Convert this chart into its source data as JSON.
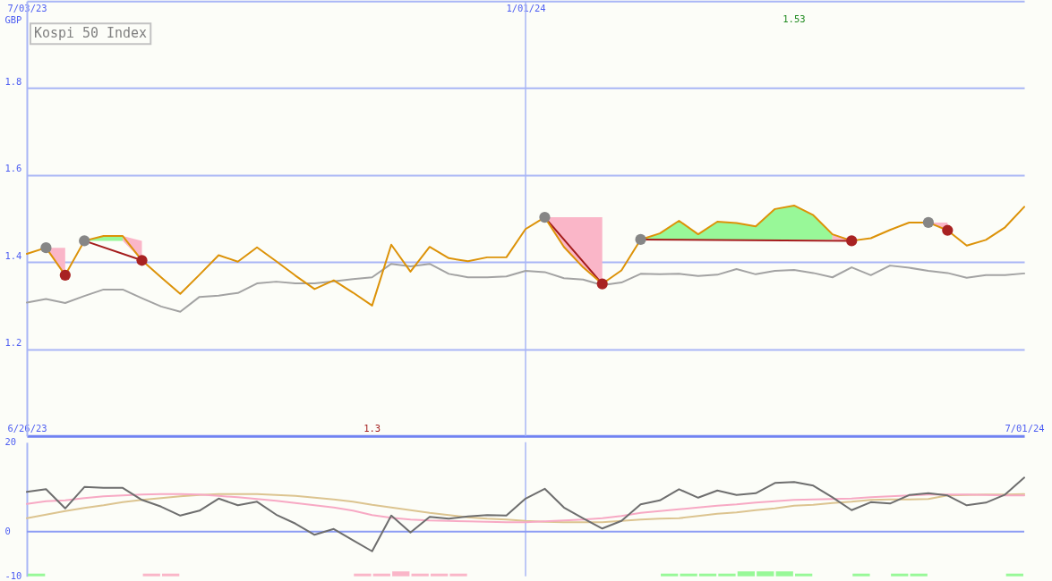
{
  "chart_data": [
    {
      "type": "line",
      "title": "Kospi 50 Index",
      "ylabel": "GBP",
      "x": [
        "2023-07-03",
        "2023-07-10",
        "2023-07-17",
        "2023-07-24",
        "2023-07-31",
        "2023-08-07",
        "2023-08-14",
        "2023-08-21",
        "2023-08-28",
        "2023-09-04",
        "2023-09-11",
        "2023-09-18",
        "2023-09-25",
        "2023-10-02",
        "2023-10-09",
        "2023-10-16",
        "2023-10-23",
        "2023-10-30",
        "2023-11-06",
        "2023-11-13",
        "2023-11-20",
        "2023-11-27",
        "2023-12-04",
        "2023-12-11",
        "2023-12-18",
        "2023-12-25",
        "2024-01-01",
        "2024-01-08",
        "2024-01-15",
        "2024-01-22",
        "2024-01-29",
        "2024-02-05",
        "2024-02-12",
        "2024-02-19",
        "2024-02-26",
        "2024-03-04",
        "2024-03-11",
        "2024-03-18",
        "2024-03-25",
        "2024-04-01",
        "2024-04-08",
        "2024-04-15",
        "2024-04-22",
        "2024-04-29",
        "2024-05-06",
        "2024-05-13",
        "2024-05-20",
        "2024-05-27",
        "2024-06-03",
        "2024-06-10",
        "2024-06-17",
        "2024-06-24",
        "2024-07-01"
      ],
      "xlim": [
        "2023-07-03",
        "2024-07-01"
      ],
      "xticks": [
        {
          "value": "2023-07-03",
          "label": "6/26/23"
        },
        {
          "value": "2024-07-01",
          "label": "7/01/24"
        }
      ],
      "x2lim": [
        "2023-07-03",
        "2024-07-01"
      ],
      "x2ticks": [
        {
          "value": "2023-07-03",
          "label": "7/03/23"
        },
        {
          "value": "2024-01-01",
          "label": "1/01/24"
        }
      ],
      "ylim": [
        1.0,
        2.0
      ],
      "yticks": [
        1.2,
        1.4,
        1.6,
        1.8
      ],
      "grid": "y",
      "ref_lines": [
        {
          "axis": "x",
          "value": "2024-01-01",
          "color": "#a9b6f6"
        }
      ],
      "series": [
        {
          "type": "line",
          "color": "#fab6c8",
          "x": [
            "2023-07-10",
            "2023-07-17"
          ],
          "values": [
            null,
            null
          ],
          "lower": [
            1.433,
            1.37
          ],
          "upper": [
            1.433,
            1.433
          ]
        },
        {
          "type": "line",
          "color": "#98f898",
          "x": [
            "2023-07-24",
            "2023-07-31",
            "2023-08-07"
          ],
          "values": [
            null,
            null,
            null
          ],
          "lower": [
            1.449,
            1.449,
            1.449
          ],
          "upper": [
            1.449,
            1.46,
            1.46
          ]
        },
        {
          "type": "line",
          "color": "#fab6c8",
          "x": [
            "2023-08-07",
            "2023-08-14"
          ],
          "values": [
            null,
            null
          ],
          "lower": [
            1.449,
            1.404
          ],
          "upper": [
            1.46,
            1.449
          ]
        },
        {
          "type": "line",
          "color": "#fab6c8",
          "x": [
            "2024-01-08",
            "2024-01-15",
            "2024-01-22",
            "2024-01-29"
          ],
          "values": [
            null,
            null,
            null,
            null
          ],
          "lower": [
            1.503,
            1.435,
            1.388,
            1.35
          ],
          "upper": [
            1.503,
            1.503,
            1.503,
            1.503
          ]
        },
        {
          "type": "line",
          "color": "#98f898",
          "x": [
            "2024-02-12",
            "2024-02-19",
            "2024-02-26",
            "2024-03-04",
            "2024-03-11",
            "2024-03-18",
            "2024-03-25",
            "2024-04-01",
            "2024-04-08",
            "2024-04-15",
            "2024-04-22"
          ],
          "values": [
            null,
            null,
            null,
            null,
            null,
            null,
            null,
            null,
            null,
            null,
            null
          ],
          "lower": [
            1.452,
            1.452,
            1.452,
            1.452,
            1.452,
            1.452,
            1.452,
            1.452,
            1.452,
            1.452,
            1.452
          ],
          "upper": [
            1.452,
            1.466,
            1.495,
            1.464,
            1.493,
            1.49,
            1.482,
            1.522,
            1.53,
            1.508,
            1.464
          ]
        },
        {
          "type": "line",
          "color": "#fab6c8",
          "x": [
            "2024-04-22",
            "2024-04-29"
          ],
          "values": [
            null,
            null
          ],
          "lower": [
            1.452,
            1.449
          ],
          "upper": [
            1.464,
            1.452
          ]
        },
        {
          "type": "line",
          "color": "#fab6c8",
          "x": [
            "2024-05-27",
            "2024-06-03"
          ],
          "values": [
            null,
            null
          ],
          "lower": [
            1.491,
            1.473
          ],
          "upper": [
            1.491,
            1.491
          ]
        },
        {
          "color": "#a3a3a3",
          "values": [
            1.307,
            1.315,
            1.306,
            1.322,
            1.337,
            1.337,
            1.317,
            1.298,
            1.286,
            1.32,
            1.323,
            1.329,
            1.351,
            1.355,
            1.351,
            1.351,
            1.356,
            1.361,
            1.365,
            1.396,
            1.39,
            1.396,
            1.373,
            1.365,
            1.365,
            1.367,
            1.38,
            1.377,
            1.363,
            1.36,
            1.347,
            1.353,
            1.373,
            1.372,
            1.373,
            1.368,
            1.371,
            1.384,
            1.372,
            1.38,
            1.382,
            1.375,
            1.365,
            1.388,
            1.37,
            1.392,
            1.387,
            1.38,
            1.375,
            1.364,
            1.37,
            1.37,
            1.374
          ]
        },
        {
          "type": "line",
          "color": "#a41c1c",
          "x": [
            "2023-07-24",
            "2023-08-14"
          ],
          "values": [
            1.449,
            1.404
          ]
        },
        {
          "type": "line",
          "color": "#a41c1c",
          "x": [
            "2024-01-08",
            "2024-01-29"
          ],
          "values": [
            1.503,
            1.35
          ]
        },
        {
          "type": "line",
          "color": "#a41c1c",
          "x": [
            "2024-02-12",
            "2024-04-29"
          ],
          "values": [
            1.452,
            1.449
          ]
        },
        {
          "color": "#dc9208",
          "values": [
            1.419,
            1.433,
            1.37,
            1.449,
            1.46,
            1.46,
            1.404,
            1.365,
            1.327,
            1.371,
            1.416,
            1.401,
            1.434,
            1.402,
            1.369,
            1.338,
            1.358,
            1.33,
            1.3,
            1.44,
            1.378,
            1.435,
            1.409,
            1.402,
            1.411,
            1.411,
            1.476,
            1.503,
            1.435,
            1.388,
            1.35,
            1.381,
            1.452,
            1.466,
            1.495,
            1.464,
            1.493,
            1.49,
            1.482,
            1.522,
            1.53,
            1.508,
            1.464,
            1.449,
            1.455,
            1.474,
            1.491,
            1.491,
            1.473,
            1.438,
            1.451,
            1.48,
            1.527
          ]
        },
        {
          "type": "scatter",
          "marker": "circle",
          "color": "#868686",
          "x": [
            "2023-07-10",
            "2023-07-24",
            "2024-01-08",
            "2024-02-12",
            "2024-05-27"
          ],
          "values": [
            1.433,
            1.449,
            1.503,
            1.452,
            1.491
          ]
        },
        {
          "type": "scatter",
          "marker": "circle",
          "color": "#a82222",
          "x": [
            "2023-07-17",
            "2023-08-14",
            "2024-01-29",
            "2024-04-29",
            "2024-06-03"
          ],
          "values": [
            1.37,
            1.404,
            1.35,
            1.449,
            1.473
          ]
        }
      ],
      "annotations": [
        "1.53",
        "1.3"
      ]
    },
    {
      "type": "line",
      "x": [
        "2023-07-03",
        "2023-07-10",
        "2023-07-17",
        "2023-07-24",
        "2023-07-31",
        "2023-08-07",
        "2023-08-14",
        "2023-08-21",
        "2023-08-28",
        "2023-09-04",
        "2023-09-11",
        "2023-09-18",
        "2023-09-25",
        "2023-10-02",
        "2023-10-09",
        "2023-10-16",
        "2023-10-23",
        "2023-10-30",
        "2023-11-06",
        "2023-11-13",
        "2023-11-20",
        "2023-11-27",
        "2023-12-04",
        "2023-12-11",
        "2023-12-18",
        "2023-12-25",
        "2024-01-01",
        "2024-01-08",
        "2024-01-15",
        "2024-01-22",
        "2024-01-29",
        "2024-02-05",
        "2024-02-12",
        "2024-02-19",
        "2024-02-26",
        "2024-03-04",
        "2024-03-11",
        "2024-03-18",
        "2024-03-25",
        "2024-04-01",
        "2024-04-08",
        "2024-04-15",
        "2024-04-22",
        "2024-04-29",
        "2024-05-06",
        "2024-05-13",
        "2024-05-20",
        "2024-05-27",
        "2024-06-03",
        "2024-06-10",
        "2024-06-17",
        "2024-06-24",
        "2024-07-01"
      ],
      "xlim": [
        "2023-07-03",
        "2024-07-01"
      ],
      "ylim": [
        -10,
        20
      ],
      "yticks": [
        -10,
        0,
        20
      ],
      "tick_labels": "y",
      "ref_lines": [
        {
          "axis": "x",
          "value": "2024-01-01",
          "color": "#a9b6f6"
        },
        {
          "axis": "y",
          "value": 0,
          "color": "#8d9cf4"
        }
      ],
      "series": [
        {
          "type": "bar",
          "color": "#fab6c8",
          "x": [
            "2023-08-17T12:00",
            "2023-08-24T12:00",
            "2023-11-02T12:00",
            "2023-11-09T12:00",
            "2023-11-16T12:00",
            "2023-11-23T12:00",
            "2023-11-30T12:00",
            "2023-12-07T12:00"
          ],
          "values": [
            0.6,
            0.6,
            0.6,
            0.6,
            1.1,
            0.6,
            0.6,
            0.6
          ],
          "base": [
            -10,
            -10,
            -10,
            -10,
            -10,
            -10,
            -10,
            -10
          ]
        },
        {
          "type": "bar",
          "color": "#98f898",
          "x": [
            "2023-07-06T12:00",
            "2024-02-22T12:00",
            "2024-02-29T12:00",
            "2024-03-07T12:00",
            "2024-03-14T12:00",
            "2024-03-21T12:00",
            "2024-03-28T12:00",
            "2024-04-04T12:00",
            "2024-04-11T12:00",
            "2024-05-02T12:00",
            "2024-05-16T12:00",
            "2024-05-23T12:00",
            "2024-06-27T12:00"
          ],
          "values": [
            0.6,
            0.6,
            0.6,
            0.6,
            0.6,
            1.1,
            1.1,
            1.1,
            0.6,
            0.6,
            0.6,
            0.6,
            0.6
          ],
          "base": [
            -10,
            -10,
            -10,
            -10,
            -10,
            -10,
            -10,
            -10,
            -10,
            -10,
            -10,
            -10,
            -10
          ]
        },
        {
          "color": "#dcc490",
          "values": [
            3.0,
            3.8,
            4.6,
            5.3,
            5.9,
            6.6,
            7.1,
            7.5,
            7.9,
            8.2,
            8.4,
            8.4,
            8.4,
            8.2,
            8.0,
            7.6,
            7.2,
            6.7,
            6.0,
            5.4,
            4.8,
            4.2,
            3.7,
            3.2,
            2.9,
            2.7,
            2.4,
            2.2,
            2.1,
            2.1,
            2.1,
            2.4,
            2.7,
            2.9,
            3.0,
            3.5,
            4.0,
            4.3,
            4.8,
            5.2,
            5.8,
            6.0,
            6.4,
            6.7,
            7.1,
            7.2,
            7.2,
            7.3,
            8.1,
            8.2,
            8.3,
            8.3,
            8.4
          ]
        },
        {
          "color": "#f7a9c4",
          "values": [
            6.2,
            6.8,
            7.0,
            7.5,
            7.9,
            8.1,
            8.3,
            8.4,
            8.4,
            8.3,
            8.0,
            7.7,
            7.3,
            6.9,
            6.4,
            5.9,
            5.4,
            4.7,
            3.7,
            3.1,
            2.7,
            2.5,
            2.4,
            2.3,
            2.2,
            2.1,
            2.1,
            2.3,
            2.5,
            2.7,
            3.0,
            3.5,
            4.2,
            4.6,
            5.0,
            5.4,
            5.8,
            6.1,
            6.5,
            6.8,
            7.1,
            7.2,
            7.3,
            7.4,
            7.7,
            7.9,
            8.1,
            8.3,
            8.3,
            8.3,
            8.2,
            8.1,
            8.1
          ]
        },
        {
          "color": "#6e6e6e",
          "values": [
            8.9,
            9.5,
            5.2,
            10.0,
            9.8,
            9.8,
            7.1,
            5.6,
            3.6,
            4.7,
            7.4,
            5.9,
            6.7,
            3.8,
            1.8,
            -0.7,
            0.6,
            -1.9,
            -4.4,
            3.6,
            -0.2,
            3.3,
            2.9,
            3.4,
            3.7,
            3.6,
            7.4,
            9.6,
            5.4,
            3.0,
            0.7,
            2.4,
            6.1,
            7.0,
            9.5,
            7.6,
            9.2,
            8.2,
            8.6,
            10.9,
            11.1,
            10.3,
            7.7,
            4.8,
            6.6,
            6.3,
            8.2,
            8.6,
            8.1,
            5.9,
            6.5,
            8.3,
            12.1
          ]
        }
      ]
    }
  ]
}
